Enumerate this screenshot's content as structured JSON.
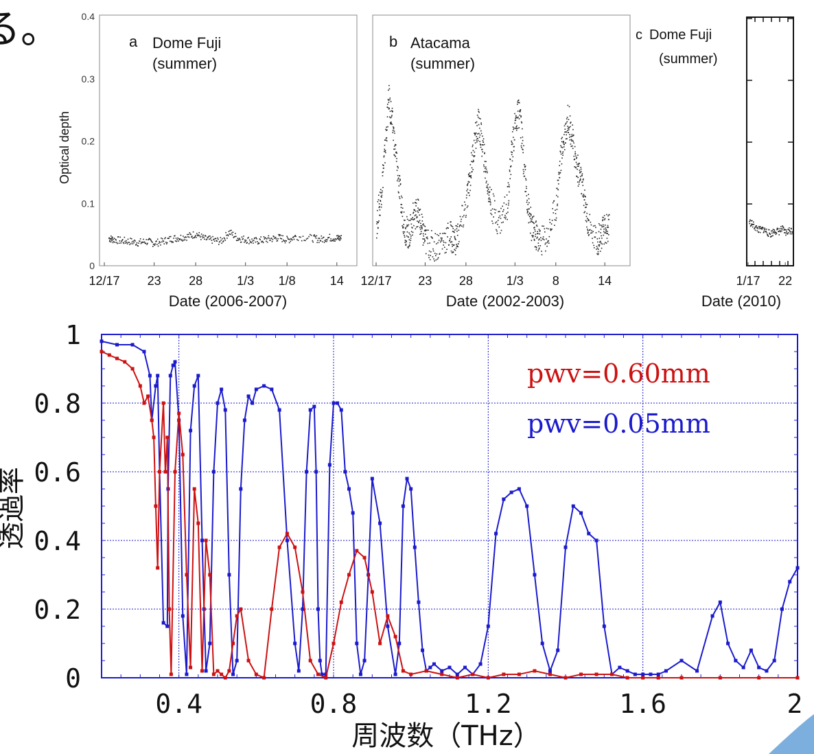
{
  "page": {
    "top_left_fragment": "る。"
  },
  "chart_data": [
    {
      "type": "scatter",
      "panel_label": "a",
      "title": "Dome Fuji\n(summer)",
      "xlabel": "Date (2006-2007)",
      "ylabel": "Optical depth",
      "ylim": [
        0,
        0.4
      ],
      "yticks": [
        "0",
        "0.1",
        "0.2",
        "0.3",
        "0.4"
      ],
      "xticks": [
        "12/17",
        "23",
        "28",
        "1/3",
        "1/8",
        "14"
      ],
      "xlim_days": [
        0,
        30
      ],
      "xtick_days": [
        0,
        6,
        11,
        17,
        22,
        28
      ],
      "series": [
        {
          "x_days": [
            0.5,
            1,
            2,
            3,
            4,
            5,
            6,
            7,
            8,
            9,
            10,
            11,
            12,
            13,
            14,
            15,
            16,
            17,
            18,
            19,
            20,
            21,
            22,
            23,
            25,
            26,
            27,
            28
          ],
          "y": [
            0.045,
            0.043,
            0.041,
            0.04,
            0.038,
            0.04,
            0.037,
            0.04,
            0.044,
            0.046,
            0.048,
            0.052,
            0.044,
            0.042,
            0.04,
            0.055,
            0.045,
            0.043,
            0.04,
            0.042,
            0.044,
            0.046,
            0.042,
            0.048,
            0.045,
            0.043,
            0.046,
            0.045
          ]
        }
      ]
    },
    {
      "type": "scatter",
      "panel_label": "b",
      "title": "Atacama\n(summer)",
      "xlabel": "Date (2002-2003)",
      "ylim": [
        0,
        0.4
      ],
      "xticks": [
        "12/17",
        "23",
        "28",
        "1/3",
        "8",
        "14"
      ],
      "xlim_days": [
        0,
        30
      ],
      "xtick_days": [
        0,
        6,
        11,
        17,
        22,
        28
      ],
      "series": [
        {
          "x_days": [
            0,
            0.5,
            1,
            1.5,
            2,
            2.5,
            3,
            3.5,
            4,
            4.5,
            5,
            5.5,
            6,
            7,
            8,
            9,
            9.5,
            10,
            11,
            11.5,
            12,
            12.5,
            13,
            13.5,
            14,
            15,
            16,
            16.5,
            17,
            17.5,
            18,
            18.5,
            19,
            19.5,
            20,
            21,
            22,
            22.5,
            23,
            23.5,
            24,
            24.5,
            25,
            25.5,
            26,
            27,
            27.5,
            28
          ],
          "y": [
            0.07,
            0.11,
            0.18,
            0.27,
            0.22,
            0.16,
            0.1,
            0.06,
            0.05,
            0.08,
            0.09,
            0.06,
            0.04,
            0.03,
            0.04,
            0.05,
            0.04,
            0.05,
            0.1,
            0.15,
            0.2,
            0.23,
            0.19,
            0.14,
            0.1,
            0.07,
            0.1,
            0.18,
            0.23,
            0.25,
            0.17,
            0.1,
            0.06,
            0.05,
            0.04,
            0.05,
            0.1,
            0.17,
            0.21,
            0.24,
            0.2,
            0.16,
            0.14,
            0.1,
            0.06,
            0.04,
            0.05,
            0.06
          ]
        }
      ]
    },
    {
      "type": "scatter",
      "panel_label": "c",
      "title": "Dome Fuji\n(summer)",
      "xlabel": "Date (2010)",
      "ylim": [
        0,
        0.4
      ],
      "xticks": [
        "1/17",
        "22"
      ],
      "xlim_days": [
        0,
        6
      ],
      "xtick_days": [
        0,
        5
      ],
      "series": [
        {
          "x_days": [
            0.1,
            0.5,
            1,
            1.5,
            2,
            2.5,
            3,
            3.5,
            4,
            4.5,
            5,
            5.5
          ],
          "y": [
            0.072,
            0.068,
            0.062,
            0.058,
            0.06,
            0.055,
            0.052,
            0.058,
            0.056,
            0.06,
            0.054,
            0.058
          ]
        }
      ]
    },
    {
      "type": "line",
      "xlabel": "周波数（THz）",
      "ylabel": "透過率",
      "xlim": [
        0.2,
        2.0
      ],
      "ylim": [
        0,
        1
      ],
      "xticks": [
        "0.4",
        "0.8",
        "1.2",
        "1.6",
        "2"
      ],
      "xtick_values": [
        0.4,
        0.8,
        1.2,
        1.6,
        2.0
      ],
      "yticks": [
        "0",
        "0.2",
        "0.4",
        "0.6",
        "0.8",
        "1"
      ],
      "ytick_values": [
        0,
        0.2,
        0.4,
        0.6,
        0.8,
        1.0
      ],
      "grid": true,
      "annotations": [
        {
          "text": "pwv=0.60mm",
          "color": "#cc1111"
        },
        {
          "text": "pwv=0.05mm",
          "color": "#1a1acc"
        }
      ],
      "series": [
        {
          "color": "#1a1acc",
          "x": [
            0.2,
            0.24,
            0.28,
            0.31,
            0.325,
            0.33,
            0.34,
            0.345,
            0.35,
            0.36,
            0.37,
            0.372,
            0.378,
            0.385,
            0.39,
            0.4,
            0.41,
            0.42,
            0.43,
            0.44,
            0.45,
            0.46,
            0.465,
            0.47,
            0.48,
            0.49,
            0.5,
            0.51,
            0.52,
            0.53,
            0.54,
            0.55,
            0.56,
            0.57,
            0.58,
            0.59,
            0.6,
            0.62,
            0.64,
            0.66,
            0.68,
            0.7,
            0.71,
            0.72,
            0.73,
            0.74,
            0.75,
            0.755,
            0.76,
            0.765,
            0.77,
            0.78,
            0.79,
            0.8,
            0.81,
            0.82,
            0.83,
            0.84,
            0.85,
            0.86,
            0.87,
            0.88,
            0.89,
            0.9,
            0.92,
            0.94,
            0.96,
            0.97,
            0.98,
            0.99,
            1.0,
            1.01,
            1.02,
            1.03,
            1.04,
            1.05,
            1.06,
            1.08,
            1.1,
            1.12,
            1.14,
            1.16,
            1.18,
            1.2,
            1.22,
            1.24,
            1.26,
            1.28,
            1.3,
            1.32,
            1.34,
            1.36,
            1.38,
            1.4,
            1.42,
            1.44,
            1.46,
            1.48,
            1.5,
            1.52,
            1.54,
            1.56,
            1.58,
            1.6,
            1.62,
            1.64,
            1.66,
            1.7,
            1.74,
            1.78,
            1.8,
            1.82,
            1.84,
            1.86,
            1.88,
            1.9,
            1.92,
            1.94,
            1.96,
            1.98,
            2.0
          ],
          "y": [
            0.98,
            0.97,
            0.97,
            0.95,
            0.88,
            0.75,
            0.85,
            0.88,
            0.6,
            0.16,
            0.15,
            0.55,
            0.88,
            0.91,
            0.92,
            0.75,
            0.18,
            0.01,
            0.72,
            0.85,
            0.88,
            0.4,
            0.2,
            0.02,
            0.1,
            0.6,
            0.8,
            0.84,
            0.78,
            0.3,
            0.01,
            0.05,
            0.55,
            0.75,
            0.82,
            0.8,
            0.84,
            0.85,
            0.84,
            0.78,
            0.4,
            0.1,
            0.02,
            0.2,
            0.6,
            0.78,
            0.79,
            0.6,
            0.2,
            0.05,
            0.01,
            0.01,
            0.62,
            0.8,
            0.8,
            0.78,
            0.6,
            0.55,
            0.48,
            0.1,
            0.01,
            0.05,
            0.3,
            0.58,
            0.45,
            0.15,
            0.01,
            0.1,
            0.5,
            0.58,
            0.55,
            0.38,
            0.22,
            0.08,
            0.02,
            0.03,
            0.04,
            0.02,
            0.03,
            0.01,
            0.03,
            0.01,
            0.04,
            0.15,
            0.42,
            0.52,
            0.54,
            0.55,
            0.5,
            0.3,
            0.1,
            0.02,
            0.08,
            0.38,
            0.5,
            0.48,
            0.42,
            0.4,
            0.15,
            0.01,
            0.03,
            0.02,
            0.01,
            0.01,
            0.01,
            0.01,
            0.02,
            0.05,
            0.02,
            0.18,
            0.22,
            0.1,
            0.05,
            0.03,
            0.08,
            0.03,
            0.02,
            0.05,
            0.2,
            0.28,
            0.32
          ]
        },
        {
          "color": "#cc1111",
          "x": [
            0.2,
            0.22,
            0.24,
            0.26,
            0.28,
            0.3,
            0.31,
            0.32,
            0.33,
            0.335,
            0.34,
            0.345,
            0.35,
            0.36,
            0.365,
            0.37,
            0.375,
            0.38,
            0.39,
            0.4,
            0.41,
            0.42,
            0.43,
            0.44,
            0.45,
            0.46,
            0.47,
            0.48,
            0.49,
            0.5,
            0.51,
            0.52,
            0.53,
            0.54,
            0.55,
            0.56,
            0.58,
            0.6,
            0.62,
            0.64,
            0.66,
            0.68,
            0.7,
            0.72,
            0.74,
            0.76,
            0.78,
            0.8,
            0.82,
            0.84,
            0.86,
            0.88,
            0.9,
            0.92,
            0.94,
            0.96,
            0.98,
            1.0,
            1.04,
            1.08,
            1.12,
            1.16,
            1.2,
            1.24,
            1.28,
            1.32,
            1.36,
            1.4,
            1.44,
            1.48,
            1.52,
            1.56,
            1.6,
            1.64,
            1.7,
            1.8,
            1.9,
            2.0
          ],
          "y": [
            0.95,
            0.94,
            0.93,
            0.92,
            0.9,
            0.85,
            0.8,
            0.82,
            0.75,
            0.7,
            0.5,
            0.32,
            0.6,
            0.8,
            0.6,
            0.7,
            0.2,
            0.01,
            0.6,
            0.77,
            0.65,
            0.3,
            0.03,
            0.55,
            0.45,
            0.02,
            0.4,
            0.3,
            0.01,
            0.02,
            0.01,
            0.0,
            0.02,
            0.1,
            0.18,
            0.2,
            0.05,
            0.01,
            0.0,
            0.2,
            0.38,
            0.42,
            0.38,
            0.25,
            0.05,
            0.01,
            0.0,
            0.1,
            0.22,
            0.3,
            0.37,
            0.35,
            0.25,
            0.1,
            0.18,
            0.12,
            0.02,
            0.01,
            0.02,
            0.01,
            0.0,
            0.01,
            0.0,
            0.01,
            0.01,
            0.02,
            0.01,
            0.0,
            0.01,
            0.01,
            0.01,
            0.0,
            0.0,
            0.0,
            0.0,
            0.0,
            0.0,
            0.0
          ]
        }
      ]
    }
  ]
}
